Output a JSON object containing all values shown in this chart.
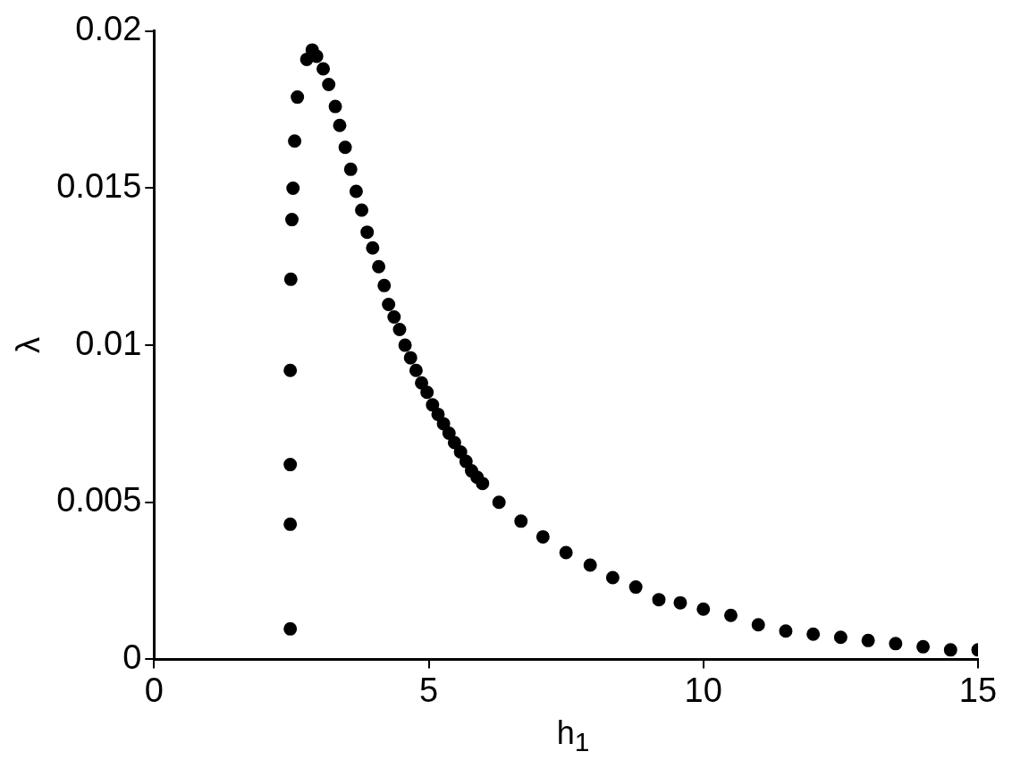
{
  "chart_data": {
    "type": "scatter",
    "xlabel": "h$_{1}$",
    "ylabel": "λ",
    "xlim": [
      0,
      15
    ],
    "xticks": [
      0,
      5,
      10,
      15
    ],
    "ylim": [
      0,
      0.02
    ],
    "yticks": [
      0,
      0.005,
      0.01,
      0.015,
      0.02
    ],
    "grid": false,
    "legend": false,
    "marker": "circle",
    "series": [
      {
        "color": "#000000",
        "x": [
          2.48,
          2.48,
          2.48,
          2.48,
          2.49,
          2.51,
          2.53,
          2.56,
          2.61,
          2.78,
          2.88,
          2.96,
          3.08,
          3.18,
          3.3,
          3.38,
          3.48,
          3.58,
          3.68,
          3.78,
          3.88,
          3.98,
          4.09,
          4.19,
          4.27,
          4.37,
          4.47,
          4.57,
          4.67,
          4.77,
          4.87,
          4.97,
          5.07,
          5.17,
          5.27,
          5.37,
          5.47,
          5.58,
          5.68,
          5.78,
          5.88,
          5.98,
          6.28,
          6.68,
          7.08,
          7.5,
          7.94,
          8.35,
          8.77,
          9.19,
          9.58,
          10,
          10.5,
          11,
          11.5,
          12,
          12.5,
          13,
          13.5,
          14,
          14.5,
          15
        ],
        "values": [
          0.00097,
          0.0043,
          0.0062,
          0.0092,
          0.0121,
          0.014,
          0.015,
          0.0165,
          0.0179,
          0.0191,
          0.0194,
          0.0192,
          0.0188,
          0.0183,
          0.0176,
          0.017,
          0.0163,
          0.0156,
          0.0149,
          0.0143,
          0.0136,
          0.0131,
          0.0125,
          0.0119,
          0.0113,
          0.0109,
          0.0105,
          0.01,
          0.0096,
          0.0092,
          0.0088,
          0.0085,
          0.0081,
          0.0078,
          0.0075,
          0.0072,
          0.0069,
          0.0066,
          0.0063,
          0.006,
          0.0058,
          0.0056,
          0.005,
          0.0044,
          0.0039,
          0.0034,
          0.003,
          0.0026,
          0.0023,
          0.0019,
          0.0018,
          0.0016,
          0.0014,
          0.0011,
          0.0009,
          0.0008,
          0.0007,
          0.0006,
          0.0005,
          0.0004,
          0.0003,
          0.0003
        ]
      }
    ]
  }
}
